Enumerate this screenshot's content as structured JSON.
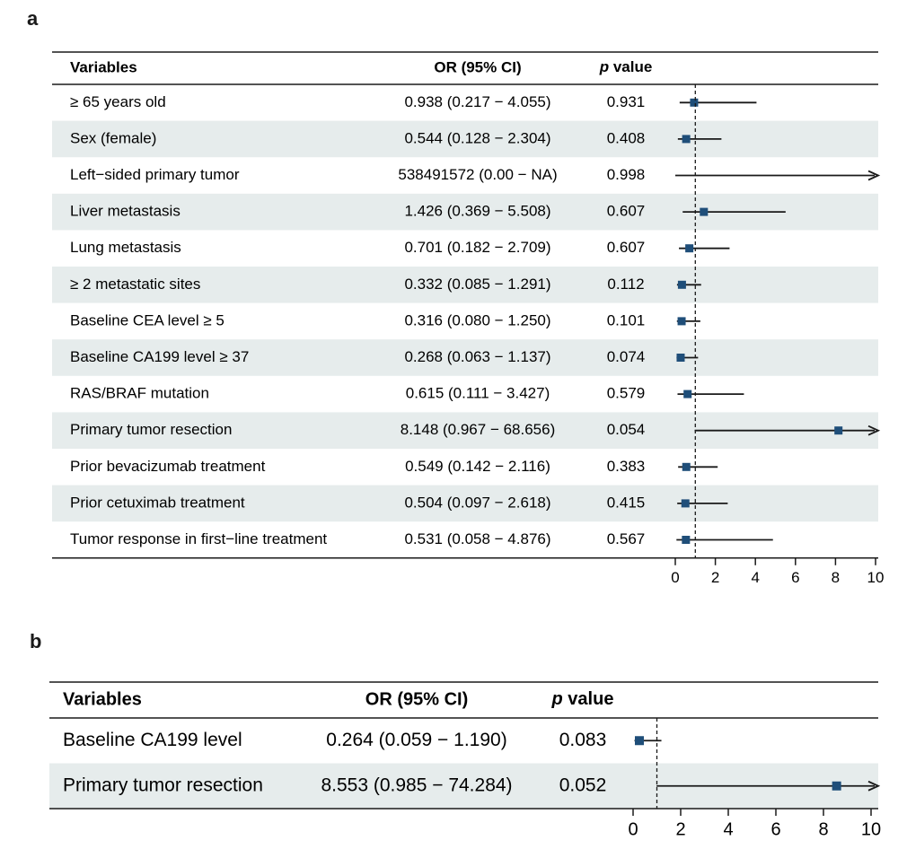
{
  "chart_data": [
    {
      "panel": "a",
      "type": "forest",
      "headers": {
        "variable": "Variables",
        "or": "OR (95% CI)",
        "p": "p value"
      },
      "xticks": [
        0,
        2,
        4,
        6,
        8,
        10
      ],
      "xlim": [
        0,
        10
      ],
      "reference_line": 1,
      "rows": [
        {
          "label": "≥ 65 years old",
          "or_text": "0.938 (0.217 − 4.055)",
          "p": "0.931",
          "or": 0.938,
          "lo": 0.217,
          "hi": 4.055,
          "shaded": false
        },
        {
          "label": "Sex (female)",
          "or_text": "0.544 (0.128 − 2.304)",
          "p": "0.408",
          "or": 0.544,
          "lo": 0.128,
          "hi": 2.304,
          "shaded": true
        },
        {
          "label": "Left−sided primary tumor",
          "or_text": "538491572 (0.00 − NA)",
          "p": "0.998",
          "or": 538491572,
          "lo": 0.0,
          "hi": null,
          "shaded": false
        },
        {
          "label": "Liver metastasis",
          "or_text": "1.426 (0.369 − 5.508)",
          "p": "0.607",
          "or": 1.426,
          "lo": 0.369,
          "hi": 5.508,
          "shaded": true
        },
        {
          "label": "Lung metastasis",
          "or_text": "0.701 (0.182 − 2.709)",
          "p": "0.607",
          "or": 0.701,
          "lo": 0.182,
          "hi": 2.709,
          "shaded": false
        },
        {
          "label": "≥ 2 metastatic sites",
          "or_text": "0.332 (0.085 − 1.291)",
          "p": "0.112",
          "or": 0.332,
          "lo": 0.085,
          "hi": 1.291,
          "shaded": true
        },
        {
          "label": "Baseline CEA level ≥ 5",
          "or_text": "0.316 (0.080 − 1.250)",
          "p": "0.101",
          "or": 0.316,
          "lo": 0.08,
          "hi": 1.25,
          "shaded": false
        },
        {
          "label": "Baseline CA199 level ≥ 37",
          "or_text": "0.268 (0.063 − 1.137)",
          "p": "0.074",
          "or": 0.268,
          "lo": 0.063,
          "hi": 1.137,
          "shaded": true
        },
        {
          "label": "RAS/BRAF mutation",
          "or_text": "0.615 (0.111 − 3.427)",
          "p": "0.579",
          "or": 0.615,
          "lo": 0.111,
          "hi": 3.427,
          "shaded": false
        },
        {
          "label": "Primary tumor resection",
          "or_text": "8.148 (0.967 − 68.656)",
          "p": "0.054",
          "or": 8.148,
          "lo": 0.967,
          "hi": 68.656,
          "shaded": true
        },
        {
          "label": "Prior bevacizumab treatment",
          "or_text": "0.549 (0.142 − 2.116)",
          "p": "0.383",
          "or": 0.549,
          "lo": 0.142,
          "hi": 2.116,
          "shaded": false
        },
        {
          "label": "Prior cetuximab treatment",
          "or_text": "0.504 (0.097 − 2.618)",
          "p": "0.415",
          "or": 0.504,
          "lo": 0.097,
          "hi": 2.618,
          "shaded": true
        },
        {
          "label": "Tumor response in first−line treatment",
          "or_text": "0.531 (0.058 − 4.876)",
          "p": "0.567",
          "or": 0.531,
          "lo": 0.058,
          "hi": 4.876,
          "shaded": false
        }
      ]
    },
    {
      "panel": "b",
      "type": "forest",
      "headers": {
        "variable": "Variables",
        "or": "OR (95% CI)",
        "p": "p value"
      },
      "xticks": [
        0,
        2,
        4,
        6,
        8,
        10
      ],
      "xlim": [
        0,
        10
      ],
      "reference_line": 1,
      "rows": [
        {
          "label": "Baseline CA199 level",
          "or_text": "0.264 (0.059 − 1.190)",
          "p": "0.083",
          "or": 0.264,
          "lo": 0.059,
          "hi": 1.19,
          "shaded": false
        },
        {
          "label": "Primary tumor resection",
          "or_text": "8.553 (0.985 − 74.284)",
          "p": "0.052",
          "or": 8.553,
          "lo": 0.985,
          "hi": 74.284,
          "shaded": true
        }
      ]
    }
  ],
  "colors": {
    "marker": "#1f4e79",
    "shade": "#e6ecec",
    "line": "#1a1a1a"
  }
}
